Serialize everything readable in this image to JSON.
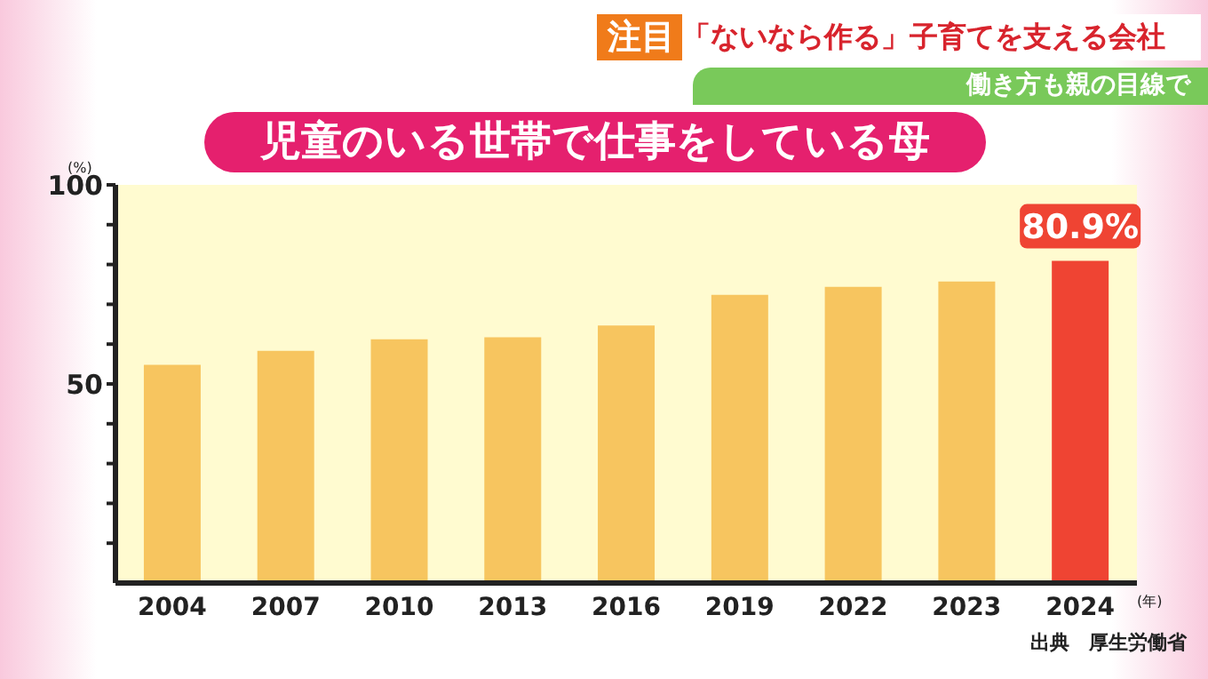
{
  "chart_data": {
    "type": "bar",
    "title": "児童のいる世帯で仕事をしている母",
    "ylabel": "(%)",
    "xlabel": "(年)",
    "annotations": [
      "注目",
      "「ないなら作る」子育てを支える会社",
      "働き方も親の目線で",
      "出典　厚生労働省"
    ],
    "categories": [
      "2004",
      "2007",
      "2010",
      "2013",
      "2016",
      "2019",
      "2022",
      "2023",
      "2024"
    ],
    "values": [
      54.8,
      58.3,
      61.2,
      61.7,
      64.7,
      72.4,
      74.4,
      75.7,
      80.9
    ],
    "colors": [
      "#f7c55f",
      "#f7c55f",
      "#f7c55f",
      "#f7c55f",
      "#f7c55f",
      "#f7c55f",
      "#f7c55f",
      "#f7c55f",
      "#ef4433"
    ],
    "value_labels": [
      null,
      null,
      null,
      null,
      null,
      null,
      null,
      null,
      "80.9%"
    ],
    "ylim": [
      0,
      100
    ],
    "yticks": [
      {
        "value": 10,
        "label": null
      },
      {
        "value": 20,
        "label": null
      },
      {
        "value": 30,
        "label": null
      },
      {
        "value": 40,
        "label": null
      },
      50,
      {
        "value": 60,
        "label": null
      },
      {
        "value": 70,
        "label": null
      },
      {
        "value": 80,
        "label": null
      },
      {
        "value": 90,
        "label": null
      },
      100
    ],
    "grid": false,
    "legend": false
  }
}
